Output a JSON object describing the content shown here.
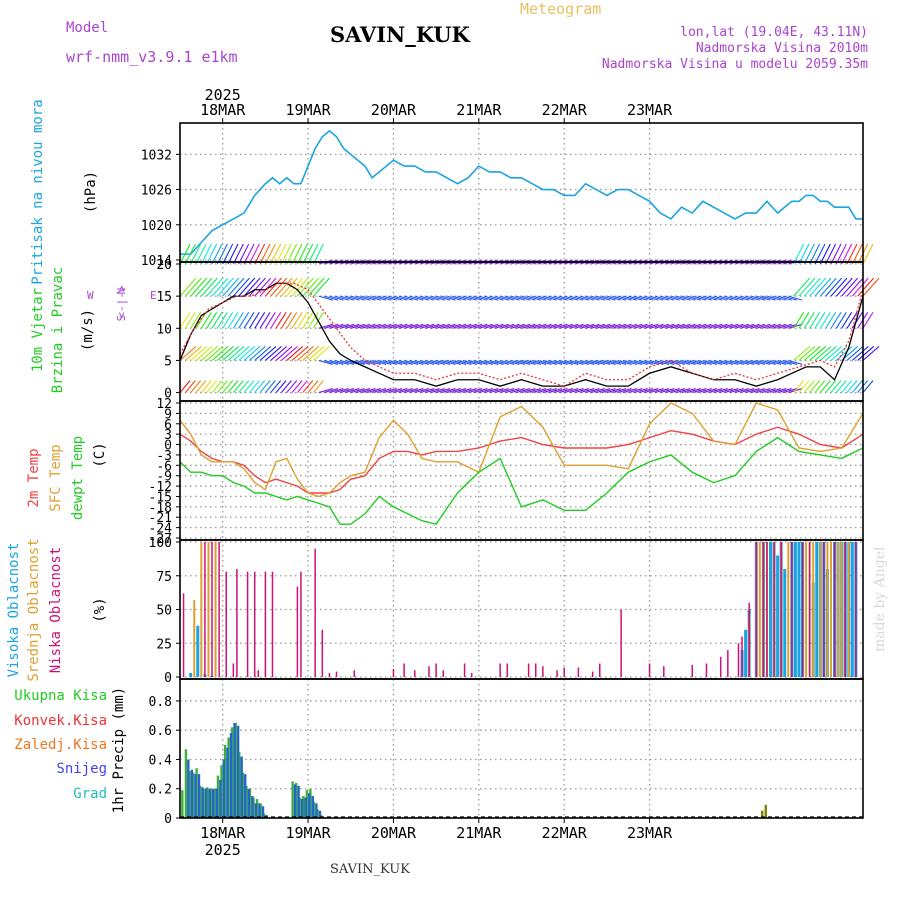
{
  "header": {
    "model_label": "Model",
    "model_value": "wrf-nmm_v3.9.1 e1km",
    "station": "SAVIN_KUK",
    "meteogram": "Meteogram",
    "lonlat": "lon,lat (19.04E, 43.11N)",
    "elevation": "Nadmorska Visina 2010m",
    "model_elevation": "Nadmorska Visina u modelu 2059.35m",
    "footer_station": "SAVIN_KUK",
    "watermark": "made by Angel"
  },
  "colors": {
    "pressure": "#1ba4e0",
    "temp2m": "#ee4444",
    "sfc": "#e0a030",
    "dew": "#22cc22",
    "high": "#1ba4e0",
    "mid": "#e0a030",
    "low": "#cc1177",
    "grid": "#999999",
    "purple": "#aa44cc"
  },
  "time_axis": {
    "year": "2025",
    "labels": [
      "18MAR",
      "19MAR",
      "20MAR",
      "21MAR",
      "22MAR",
      "23MAR"
    ]
  },
  "chart_data": [
    {
      "type": "line",
      "panel": "pressure",
      "ylabel": [
        "Pritisak na nivou mora",
        "(hPa)"
      ],
      "y_ticks": [
        "1014",
        "1020",
        "1026",
        "1032"
      ],
      "ylim": [
        1014,
        1037
      ],
      "x_unit": "hours from 18MAR 00",
      "series": [
        {
          "name": "Pritisak na nivou mora",
          "x": [
            -12,
            -9,
            -6,
            -3,
            0,
            3,
            6,
            9,
            12,
            14,
            16,
            18,
            20,
            22,
            24,
            26,
            28,
            30,
            32,
            34,
            36,
            38,
            40,
            42,
            44,
            46,
            48,
            51,
            54,
            57,
            60,
            63,
            66,
            69,
            72,
            75,
            78,
            81,
            84,
            87,
            90,
            93,
            96,
            99,
            102,
            105,
            108,
            111,
            114,
            117,
            120,
            123,
            126,
            129,
            132,
            135,
            138,
            141,
            144,
            147,
            150,
            153,
            156,
            158,
            160,
            162,
            164,
            166,
            168,
            170,
            172,
            174,
            176,
            178,
            180
          ],
          "values": [
            1015,
            1015,
            1017,
            1019,
            1020,
            1021,
            1022,
            1025,
            1027,
            1028,
            1027,
            1028,
            1027,
            1027,
            1030,
            1033,
            1035,
            1036,
            1035,
            1033,
            1032,
            1031,
            1030,
            1028,
            1029,
            1030,
            1031,
            1030,
            1030,
            1029,
            1029,
            1028,
            1027,
            1028,
            1030,
            1029,
            1029,
            1028,
            1028,
            1027,
            1026,
            1026,
            1025,
            1025,
            1027,
            1026,
            1025,
            1026,
            1026,
            1025,
            1024,
            1022,
            1021,
            1023,
            1022,
            1024,
            1023,
            1022,
            1021,
            1022,
            1022,
            1024,
            1022,
            1023,
            1024,
            1024,
            1025,
            1025,
            1024,
            1024,
            1023,
            1023,
            1023,
            1021,
            1021
          ]
        }
      ]
    },
    {
      "type": "line",
      "panel": "wind",
      "ylabel": [
        "10m Vjetar",
        "Brzina i Pravac",
        "(m/s)"
      ],
      "direction_legend": [
        "N",
        "<-|->",
        "S",
        "W",
        "E"
      ],
      "y_ticks": [
        "0",
        "5",
        "10",
        "15",
        "20"
      ],
      "ylim": [
        -1,
        20
      ],
      "x_unit": "hours from 18MAR 00",
      "series": [
        {
          "name": "brzina",
          "x": [
            -12,
            -9,
            -6,
            -3,
            0,
            3,
            6,
            9,
            12,
            15,
            18,
            21,
            24,
            27,
            30,
            33,
            36,
            40,
            44,
            48,
            54,
            60,
            66,
            72,
            78,
            84,
            90,
            96,
            102,
            108,
            114,
            120,
            126,
            132,
            138,
            144,
            150,
            156,
            160,
            164,
            168,
            172,
            176,
            180
          ],
          "values": [
            5,
            9,
            12,
            13,
            14,
            15,
            15,
            16,
            16,
            17,
            17,
            16,
            14,
            11,
            8,
            6,
            5,
            4,
            3,
            2,
            2,
            1,
            2,
            2,
            1,
            2,
            1,
            1,
            2,
            1,
            1,
            3,
            4,
            3,
            2,
            2,
            1,
            2,
            3,
            4,
            4,
            2,
            7,
            15
          ]
        },
        {
          "name": "udari",
          "x": [
            -12,
            -8,
            -4,
            0,
            4,
            8,
            12,
            16,
            20,
            24,
            28,
            32,
            36,
            40,
            44,
            48,
            54,
            60,
            66,
            72,
            78,
            84,
            90,
            96,
            102,
            108,
            114,
            120,
            126,
            132,
            138,
            144,
            150,
            156,
            162,
            168,
            172,
            176,
            180
          ],
          "values": [
            6,
            10,
            13,
            14,
            15,
            15,
            16,
            17,
            17,
            16,
            13,
            10,
            7,
            5,
            4,
            3,
            3,
            2,
            3,
            3,
            2,
            3,
            2,
            1,
            3,
            2,
            2,
            4,
            5,
            3,
            2,
            3,
            2,
            3,
            4,
            5,
            4,
            8,
            16
          ]
        }
      ]
    },
    {
      "type": "line",
      "panel": "temperature",
      "ylabel": [
        "2m Temp",
        "SFC Temp",
        "dewpt Temp",
        "(C)"
      ],
      "y_ticks": [
        "12",
        "9",
        "6",
        "3",
        "0",
        "-3",
        "-6",
        "-9",
        "-12",
        "-15",
        "-18",
        "-21",
        "-24",
        "-27"
      ],
      "ylim": [
        -27,
        12
      ],
      "x_unit": "hours from 18MAR 00",
      "series": [
        {
          "name": "2m Temp",
          "x": [
            -12,
            -9,
            -6,
            -3,
            0,
            3,
            6,
            9,
            12,
            15,
            18,
            21,
            24,
            27,
            30,
            33,
            36,
            40,
            44,
            48,
            52,
            56,
            60,
            66,
            72,
            78,
            84,
            90,
            96,
            102,
            108,
            114,
            120,
            126,
            132,
            138,
            144,
            150,
            156,
            162,
            168,
            174,
            180
          ],
          "values": [
            3,
            1,
            -2,
            -4,
            -5,
            -5,
            -6,
            -9,
            -11,
            -10,
            -11,
            -12,
            -14,
            -14,
            -14,
            -13,
            -10,
            -9,
            -4,
            -2,
            -2,
            -3,
            -2,
            -2,
            -1,
            1,
            2,
            0,
            -1,
            -1,
            -1,
            0,
            2,
            4,
            3,
            1,
            0,
            3,
            5,
            3,
            0,
            -1,
            3
          ]
        },
        {
          "name": "SFC Temp",
          "x": [
            -12,
            -9,
            -6,
            -3,
            0,
            3,
            6,
            9,
            12,
            15,
            18,
            21,
            24,
            27,
            30,
            33,
            36,
            40,
            44,
            48,
            52,
            56,
            60,
            66,
            72,
            78,
            84,
            90,
            96,
            102,
            108,
            114,
            120,
            126,
            132,
            138,
            144,
            150,
            156,
            162,
            168,
            174,
            180
          ],
          "values": [
            7,
            3,
            -3,
            -5,
            -5,
            -5,
            -7,
            -11,
            -13,
            -5,
            -4,
            -10,
            -14,
            -15,
            -14,
            -11,
            -9,
            -8,
            2,
            7,
            3,
            -4,
            -5,
            -5,
            -8,
            8,
            11,
            5,
            -6,
            -6,
            -6,
            -7,
            6,
            12,
            9,
            1,
            0,
            12,
            10,
            -1,
            -2,
            -1,
            9
          ]
        },
        {
          "name": "dewpt Temp",
          "x": [
            -12,
            -9,
            -6,
            -3,
            0,
            3,
            6,
            9,
            12,
            15,
            18,
            21,
            24,
            27,
            30,
            33,
            36,
            40,
            44,
            48,
            52,
            56,
            60,
            66,
            72,
            78,
            84,
            90,
            96,
            102,
            108,
            114,
            120,
            126,
            132,
            138,
            144,
            150,
            156,
            162,
            168,
            174,
            180
          ],
          "values": [
            -5,
            -8,
            -8,
            -9,
            -9,
            -11,
            -12,
            -14,
            -14,
            -15,
            -16,
            -15,
            -16,
            -17,
            -18,
            -23,
            -23,
            -20,
            -15,
            -18,
            -20,
            -22,
            -23,
            -14,
            -8,
            -4,
            -18,
            -16,
            -19,
            -19,
            -14,
            -8,
            -5,
            -3,
            -8,
            -11,
            -9,
            -2,
            2,
            -2,
            -3,
            -4,
            -1
          ]
        }
      ]
    },
    {
      "type": "bar",
      "panel": "cloud",
      "ylabel": [
        "Visoka Oblacnost",
        "Srednja Oblacnost",
        "Niska Oblacnost",
        "(%)"
      ],
      "y_ticks": [
        "0",
        "25",
        "50",
        "75",
        "100"
      ],
      "ylim": [
        0,
        100
      ],
      "x_unit": "hours from 18MAR 00",
      "series": [
        {
          "name": "Visoka Oblacnost",
          "x": [
            -9,
            -7,
            -5,
            -3,
            146,
            147,
            148,
            150,
            152,
            154,
            155,
            156,
            157,
            158,
            160,
            161,
            162,
            163,
            166,
            167,
            168,
            169,
            170,
            172,
            173,
            174,
            175,
            176,
            177,
            178
          ],
          "values": [
            3,
            38,
            2,
            1,
            20,
            35,
            50,
            100,
            100,
            100,
            100,
            90,
            100,
            80,
            100,
            100,
            100,
            100,
            70,
            100,
            100,
            100,
            80,
            100,
            100,
            100,
            100,
            100,
            100,
            100
          ]
        },
        {
          "name": "Srednja Oblacnost",
          "x": [
            -8,
            -6,
            -4,
            -2,
            148,
            150,
            151,
            152,
            153,
            155,
            157,
            159,
            164,
            165,
            166,
            168,
            170,
            171,
            173,
            174,
            176
          ],
          "values": [
            57,
            100,
            100,
            100,
            45,
            100,
            100,
            100,
            100,
            100,
            100,
            100,
            100,
            100,
            100,
            100,
            100,
            100,
            100,
            100,
            100
          ]
        },
        {
          "name": "Niska Oblacnost",
          "x": [
            -11,
            -5,
            -3,
            -1,
            1,
            3,
            4,
            7,
            9,
            10,
            12,
            14,
            21,
            22,
            26,
            28,
            30,
            32,
            37,
            48,
            51,
            54,
            58,
            60,
            62,
            68,
            70,
            78,
            80,
            86,
            88,
            90,
            94,
            96,
            100,
            104,
            106,
            112,
            120,
            124,
            132,
            136,
            140,
            142,
            145,
            146,
            148,
            150,
            152,
            153,
            155,
            157,
            160,
            163,
            165,
            169,
            172,
            175,
            178
          ],
          "values": [
            62,
            100,
            100,
            100,
            78,
            10,
            80,
            78,
            78,
            5,
            78,
            78,
            67,
            78,
            95,
            35,
            3,
            4,
            5,
            6,
            10,
            5,
            8,
            10,
            5,
            10,
            3,
            10,
            10,
            10,
            10,
            8,
            5,
            7,
            7,
            4,
            10,
            50,
            10,
            8,
            9,
            10,
            15,
            20,
            25,
            30,
            55,
            100,
            100,
            100,
            100,
            100,
            100,
            100,
            100,
            100,
            100,
            100,
            100
          ]
        }
      ]
    },
    {
      "type": "bar",
      "panel": "precipitation",
      "ylabel": [
        "Ukupna Kisa",
        "Konvek.Kisa",
        "Zaledj.Kisa",
        "Snijeg",
        "Grad",
        "1hr Precip (mm)"
      ],
      "y_ticks": [
        "0",
        "0.2",
        "0.4",
        "0.6",
        "0.8"
      ],
      "ylim": [
        0,
        0.95
      ],
      "x_unit": "hours from 18MAR 00",
      "series": [
        {
          "name": "Ukupna Kisa",
          "x": [
            -11,
            -10,
            -9,
            -8,
            -7,
            -6,
            -5,
            -4,
            -3,
            -2,
            -1,
            0,
            1,
            2,
            3,
            4,
            5,
            6,
            7,
            8,
            9,
            10,
            11,
            12,
            20,
            21,
            22,
            23,
            24,
            25,
            26,
            27,
            28,
            152,
            153
          ],
          "values": [
            0.19,
            0.47,
            0.32,
            0.31,
            0.34,
            0.22,
            0.2,
            0.21,
            0.2,
            0.2,
            0.29,
            0.36,
            0.5,
            0.55,
            0.62,
            0.65,
            0.45,
            0.31,
            0.22,
            0.2,
            0.14,
            0.13,
            0.1,
            0.03,
            0.25,
            0.24,
            0.14,
            0.15,
            0.19,
            0.2,
            0.11,
            0.06,
            0.02,
            0.05,
            0.09
          ]
        },
        {
          "name": "Snijeg",
          "x": [
            -10,
            -9,
            -8,
            -7,
            -6,
            -5,
            -4,
            -3,
            -2,
            -1,
            0,
            1,
            2,
            3,
            4,
            5,
            6,
            7,
            8,
            9,
            10,
            11,
            12,
            20,
            21,
            22,
            23,
            24,
            25,
            26,
            27
          ],
          "values": [
            0.4,
            0.33,
            0.3,
            0.3,
            0.21,
            0.2,
            0.2,
            0.2,
            0.2,
            0.26,
            0.4,
            0.48,
            0.58,
            0.65,
            0.63,
            0.42,
            0.3,
            0.2,
            0.15,
            0.1,
            0.1,
            0.08,
            0.02,
            0.23,
            0.22,
            0.13,
            0.14,
            0.17,
            0.15,
            0.1,
            0.05
          ]
        }
      ]
    }
  ]
}
